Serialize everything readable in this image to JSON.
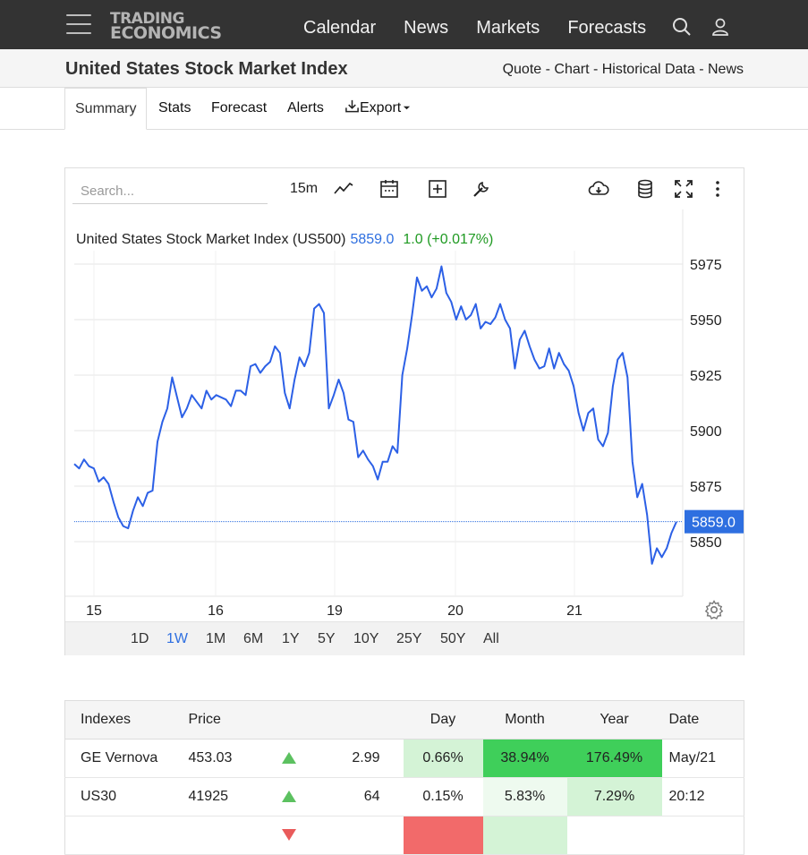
{
  "header": {
    "logo_line1": "TRADING",
    "logo_line2": "ECONOMICS",
    "nav": [
      "Calendar",
      "News",
      "Markets",
      "Forecasts"
    ]
  },
  "titlebar": {
    "title": "United States Stock Market Index",
    "quicklinks": [
      "Quote",
      "Chart",
      "Historical Data",
      "News"
    ],
    "separator": " - "
  },
  "tabs": {
    "summary": "Summary",
    "stats": "Stats",
    "forecast": "Forecast",
    "alerts": "Alerts",
    "export": "Export"
  },
  "toolbar": {
    "search_placeholder": "Search...",
    "interval": "15m"
  },
  "chart_data": {
    "type": "line",
    "legend_name": "United States Stock Market Index (US500)",
    "legend_price": "5859.0",
    "legend_change": "1.0 (+0.017%)",
    "last_price_label": "5859.0",
    "last_value": 5859.0,
    "y_ticks": [
      5975,
      5950,
      5925,
      5900,
      5875,
      5850
    ],
    "ylim": [
      5838,
      5980
    ],
    "x_ticks": [
      "15",
      "16",
      "19",
      "20",
      "21"
    ],
    "grid": true,
    "line_color": "#2c60e6",
    "series": [
      {
        "values": [
          5885,
          5883,
          5887,
          5884,
          5883,
          5877,
          5879,
          5876,
          5868,
          5861,
          5857,
          5856,
          5864,
          5870,
          5866,
          5872,
          5873,
          5895,
          5904,
          5910,
          5924,
          5915,
          5906,
          5910,
          5916,
          5913,
          5910,
          5918,
          5914,
          5916,
          5915,
          5914,
          5911,
          5918,
          5918,
          5916,
          5929,
          5930,
          5926,
          5929,
          5931,
          5938,
          5935,
          5917,
          5910,
          5923,
          5933,
          5929,
          5935,
          5955,
          5957,
          5953,
          5910,
          5916,
          5923,
          5917,
          5905,
          5904,
          5888,
          5891,
          5887,
          5884,
          5878,
          5886,
          5886,
          5893,
          5890,
          5925,
          5937,
          5952,
          5969,
          5963,
          5965,
          5960,
          5964,
          5974,
          5962,
          5958,
          5950,
          5956,
          5950,
          5952,
          5957,
          5946,
          5949,
          5948,
          5951,
          5957,
          5950,
          5946,
          5928,
          5941,
          5945,
          5938,
          5932,
          5928,
          5929,
          5937,
          5928,
          5935,
          5930,
          5927,
          5920,
          5908,
          5900,
          5908,
          5910,
          5896,
          5893,
          5899,
          5920,
          5932,
          5935,
          5924,
          5886,
          5870,
          5876,
          5862,
          5840,
          5847,
          5843,
          5847,
          5854,
          5859
        ]
      }
    ]
  },
  "ranges": [
    "1D",
    "1W",
    "1M",
    "6M",
    "1Y",
    "5Y",
    "10Y",
    "25Y",
    "50Y",
    "All"
  ],
  "active_range": "1W",
  "table": {
    "headers": {
      "name": "Indexes",
      "price": "Price",
      "day": "Day",
      "month": "Month",
      "year": "Year",
      "date": "Date"
    },
    "rows": [
      {
        "name": "GE Vernova",
        "price": "453.03",
        "direction": "up",
        "change": "2.99",
        "day": "0.66%",
        "month": "38.94%",
        "year": "176.49%",
        "date": "May/21",
        "day_bg": "#d4f3d6",
        "month_bg": "#3fcf5a",
        "year_bg": "#3fcf5a"
      },
      {
        "name": "US30",
        "price": "41925",
        "direction": "up",
        "change": "64",
        "day": "0.15%",
        "month": "5.83%",
        "year": "7.29%",
        "date": "20:12",
        "day_bg": "#ffffff",
        "month_bg": "#eefaef",
        "year_bg": "#d4f3d6"
      },
      {
        "name": "",
        "price": "",
        "direction": "down",
        "change": "",
        "day": "",
        "month": "",
        "year": "",
        "date": "",
        "day_bg": "#f26a6a",
        "month_bg": "#d4f3d6",
        "year_bg": "#ffffff"
      }
    ]
  },
  "colors": {
    "accent_blue": "#2e6fe0",
    "change_green": "#1f9a22",
    "topbar": "#333333"
  }
}
